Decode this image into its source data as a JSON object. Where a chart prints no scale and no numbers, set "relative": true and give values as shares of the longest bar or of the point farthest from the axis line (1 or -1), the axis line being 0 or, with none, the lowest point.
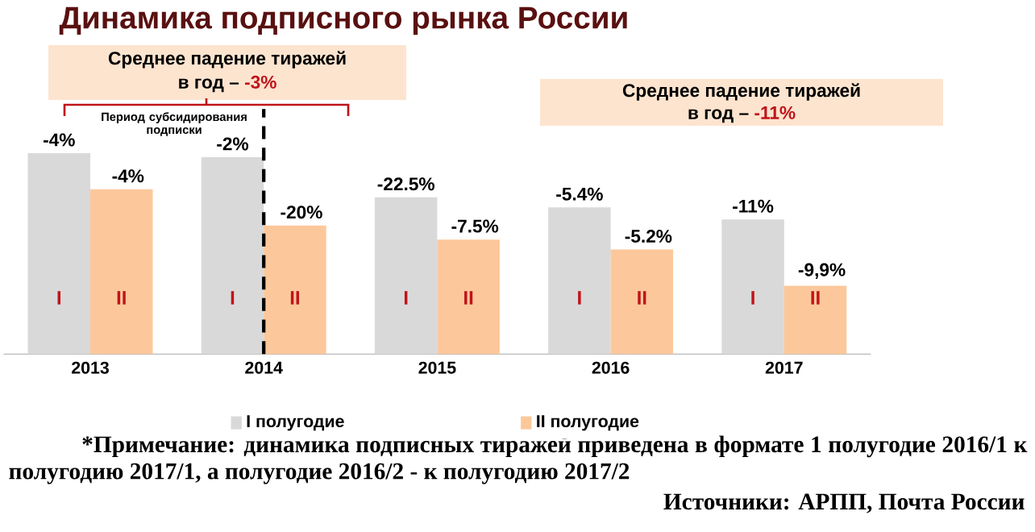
{
  "chart_data": {
    "type": "bar",
    "title": "Динамика подписного рынка России",
    "relative": true,
    "categories": [
      "2013",
      "2014",
      "2015",
      "2016",
      "2017"
    ],
    "series": [
      {
        "name": "I полугодие",
        "color": "#d9d9d9",
        "values": [
          1,
          0.98,
          0.78,
          0.73,
          0.67
        ]
      },
      {
        "name": "II полугодие",
        "color": "#fcc89b",
        "values": [
          0.82,
          0.64,
          0.57,
          0.52,
          0.34
        ]
      }
    ],
    "legend": "bottom",
    "ref_lines": [
      {
        "axis": "x",
        "value": "2014",
        "color": "#000000",
        "line_style": "dashed"
      }
    ],
    "annotations": [
      "Среднее падение тиражей",
      "в год –",
      "-3%",
      "Среднее падение тиражей",
      "в год –",
      "-11%",
      "Период субсидирования подписки",
      "*Примечание: динамика подписных тиражей приведена в формате 1 полугодие 2016/1 к полугодию 2017/1, а полугодие 2016/2 - к полугодию 2017/2",
      "Источники: АРПП, Почта России",
      {
        "text": "-4%",
        "x": "2013",
        "y": 1
      },
      {
        "text": "-4%",
        "x": "2013",
        "y": 0.82
      },
      {
        "text": "I",
        "x": "2013",
        "y": 0.28
      },
      {
        "text": "II",
        "x": "2013",
        "y": 0.28
      },
      {
        "text": "-2%",
        "x": "2014",
        "y": 0.98
      },
      {
        "text": "-20%",
        "x": "2014",
        "y": 0.64
      },
      {
        "text": "I",
        "x": "2014",
        "y": 0.28
      },
      {
        "text": "II",
        "x": "2014",
        "y": 0.28
      },
      {
        "text": "-22.5%",
        "x": "2015",
        "y": 0.78
      },
      {
        "text": "-7.5%",
        "x": "2015",
        "y": 0.57
      },
      {
        "text": "I",
        "x": "2015",
        "y": 0.28
      },
      {
        "text": "II",
        "x": "2015",
        "y": 0.28
      },
      {
        "text": "-5.4%",
        "x": "2016",
        "y": 0.73
      },
      {
        "text": "-5.2%",
        "x": "2016",
        "y": 0.52
      },
      {
        "text": "I",
        "x": "2016",
        "y": 0.28
      },
      {
        "text": "II",
        "x": "2016",
        "y": 0.28
      },
      {
        "text": "-11%",
        "x": "2017",
        "y": 0.67
      },
      {
        "text": "-9,9%",
        "x": "2017",
        "y": 0.34
      },
      {
        "text": "I",
        "x": "2017",
        "y": 0.28
      },
      {
        "text": "II",
        "x": "2017",
        "y": 0.28
      }
    ]
  }
}
